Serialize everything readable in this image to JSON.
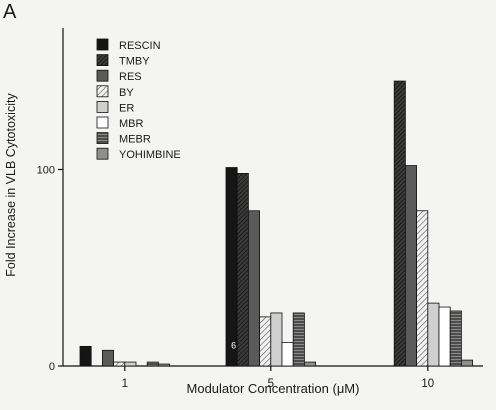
{
  "panel_label": "A",
  "chart_data": {
    "type": "bar",
    "title": "",
    "xlabel": "Modulator Concentration (μM)",
    "ylabel": "Fold Increase in VLB Cytotoxicity",
    "ylim": [
      0,
      172
    ],
    "categories": [
      "1",
      "5",
      "10"
    ],
    "yticks": [
      0,
      100
    ],
    "legend_position": "top-left",
    "grid": false,
    "series": [
      {
        "name": "RESCIN",
        "values": [
          10,
          101,
          null
        ],
        "fill": "solid-black"
      },
      {
        "name": "TMBY",
        "values": [
          null,
          98,
          145
        ],
        "fill": "dense-diagonal"
      },
      {
        "name": "RES",
        "values": [
          8,
          79,
          102
        ],
        "fill": "dark-gray"
      },
      {
        "name": "BY",
        "values": [
          2,
          25,
          79
        ],
        "fill": "light-diagonal"
      },
      {
        "name": "ER",
        "values": [
          2,
          27,
          32
        ],
        "fill": "light-gray"
      },
      {
        "name": "MBR",
        "values": [
          null,
          12,
          30
        ],
        "fill": "white"
      },
      {
        "name": "MEBR",
        "values": [
          2,
          27,
          28
        ],
        "fill": "horizontal-lines"
      },
      {
        "name": "YOHIMBINE",
        "values": [
          1,
          2,
          3
        ],
        "fill": "medium-gray"
      }
    ],
    "annotations": [
      {
        "text": "6",
        "category": "5",
        "series": "RESCIN",
        "y": 9
      }
    ]
  }
}
